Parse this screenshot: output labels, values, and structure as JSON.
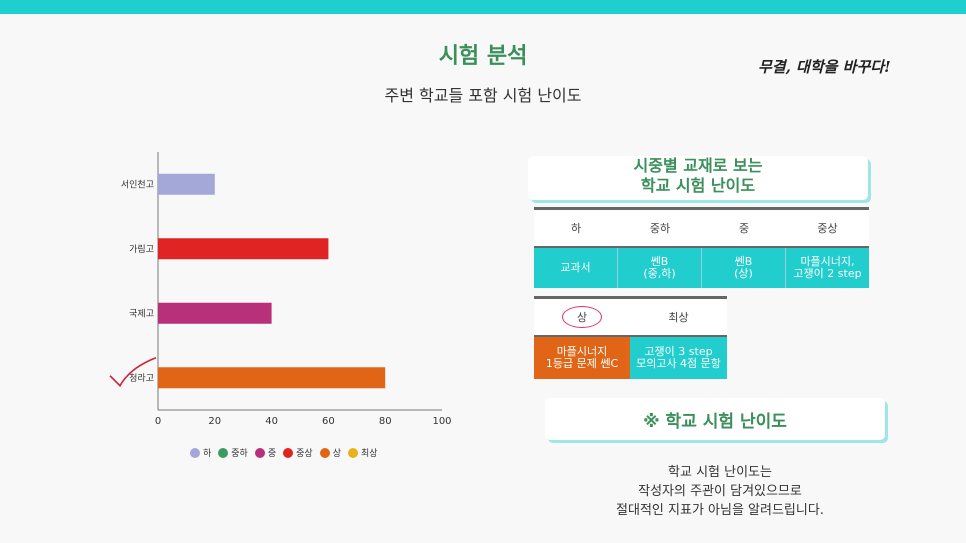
{
  "header": {
    "title": "시험 분석",
    "subtitle": "주변 학교들 포함 시험 난이도",
    "brand": "무결, 대학을 바꾸다!"
  },
  "chart_data": {
    "type": "bar",
    "orientation": "horizontal",
    "categories": [
      "서인천고",
      "가림고",
      "국제고",
      "청라고"
    ],
    "values": [
      20,
      60,
      40,
      80
    ],
    "colors": [
      "#a4a8d8",
      "#e02424",
      "#b8307a",
      "#e06516"
    ],
    "xlim": [
      0,
      100
    ],
    "xticks": [
      "0",
      "20",
      "40",
      "60",
      "80",
      "100"
    ],
    "legend": [
      {
        "label": "하",
        "color": "#a4a8d8"
      },
      {
        "label": "중하",
        "color": "#3d9a62"
      },
      {
        "label": "중",
        "color": "#b8307a"
      },
      {
        "label": "중상",
        "color": "#e02424"
      },
      {
        "label": "상",
        "color": "#e06516"
      },
      {
        "label": "최상",
        "color": "#e8b21a"
      }
    ],
    "legend_position": "bottom"
  },
  "panel": {
    "title_line1": "시중별 교재로 보는",
    "title_line2": "학교 시험 난이도"
  },
  "table1": {
    "headers": [
      "하",
      "중하",
      "중",
      "중상"
    ],
    "cells": [
      [
        "교과서"
      ],
      [
        "쎈B",
        "(중,하)"
      ],
      [
        "쎈B",
        "(상)"
      ],
      [
        "마플시너지,",
        "고쟁이 2 step"
      ]
    ]
  },
  "table2": {
    "headers": [
      "상",
      "최상"
    ],
    "cells": [
      [
        "마플시너지",
        "1등급 문제 쎈C"
      ],
      [
        "고쟁이 3 step",
        "모의고사 4점 문항"
      ]
    ]
  },
  "note": {
    "title": "※ 학교 시험 난이도",
    "lines": [
      "학교 시험 난이도는",
      "작성자의 주관이 담겨있으므로",
      "절대적인 지표가 아님을 알려드립니다."
    ]
  },
  "colors": {
    "accent_teal": "#1fcfcf",
    "title_green": "#3a8f5a",
    "orange": "#e06516"
  }
}
